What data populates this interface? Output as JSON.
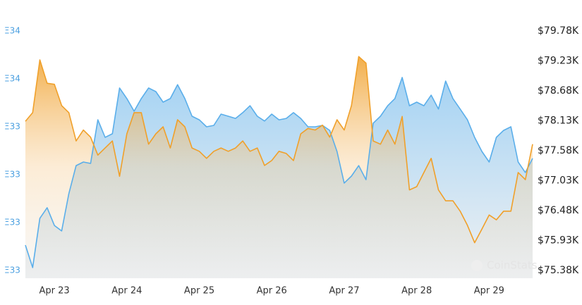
{
  "chart_data": {
    "type": "line",
    "categories": [
      null,
      null,
      null,
      null,
      "Apr 23",
      null,
      null,
      null,
      null,
      null,
      null,
      null,
      null,
      null,
      "Apr 24",
      null,
      null,
      null,
      null,
      null,
      null,
      null,
      null,
      null,
      "Apr 25",
      null,
      null,
      null,
      null,
      null,
      null,
      null,
      null,
      null,
      "Apr 26",
      null,
      null,
      null,
      null,
      null,
      null,
      null,
      null,
      null,
      "Apr 27",
      null,
      null,
      null,
      null,
      null,
      null,
      null,
      null,
      null,
      "Apr 28",
      null,
      null,
      null,
      null,
      null,
      null,
      null,
      null,
      null,
      "Apr 29",
      null,
      null,
      null,
      null,
      null,
      null
    ],
    "series": [
      {
        "color": "#5aaeea",
        "axis": "y",
        "values": [
          32.906,
          32.812,
          33.018,
          33.062,
          32.988,
          32.965,
          33.121,
          33.238,
          33.253,
          33.247,
          33.429,
          33.356,
          33.371,
          33.562,
          33.518,
          33.465,
          33.518,
          33.562,
          33.547,
          33.503,
          33.518,
          33.576,
          33.518,
          33.444,
          33.429,
          33.4,
          33.406,
          33.453,
          33.444,
          33.435,
          33.459,
          33.488,
          33.444,
          33.424,
          33.453,
          33.429,
          33.435,
          33.459,
          33.435,
          33.4,
          33.4,
          33.406,
          33.385,
          33.297,
          33.165,
          33.194,
          33.238,
          33.179,
          33.415,
          33.444,
          33.488,
          33.518,
          33.606,
          33.488,
          33.503,
          33.488,
          33.532,
          33.474,
          33.591,
          33.518,
          33.474,
          33.429,
          33.356,
          33.297,
          33.253,
          33.356,
          33.385,
          33.4,
          33.253,
          33.209,
          33.268
        ]
      },
      {
        "color": "#f0a02a",
        "axis": "y2",
        "values": [
          78120,
          78280,
          79250,
          78820,
          78800,
          78410,
          78280,
          77760,
          77960,
          77830,
          77500,
          77630,
          77760,
          77110,
          77890,
          78280,
          78280,
          77700,
          77890,
          78020,
          77630,
          78150,
          78020,
          77630,
          77570,
          77440,
          77570,
          77630,
          77570,
          77630,
          77760,
          77570,
          77630,
          77310,
          77400,
          77570,
          77530,
          77400,
          77890,
          77990,
          77960,
          78050,
          77830,
          78150,
          77960,
          78410,
          79310,
          79190,
          77760,
          77700,
          77960,
          77700,
          78210,
          76860,
          76920,
          77180,
          77440,
          76860,
          76660,
          76660,
          76470,
          76210,
          75890,
          76140,
          76400,
          76310,
          76470,
          76470,
          77180,
          77050,
          77700
        ]
      }
    ],
    "ylim": [
      32.8,
      33.8
    ],
    "yticks": [
      {
        "value": 33.8,
        "label": "Ξ34"
      },
      {
        "value": 33.6,
        "label": "Ξ34"
      },
      {
        "value": 33.4,
        "label": "Ξ33"
      },
      {
        "value": 33.2,
        "label": "Ξ33"
      },
      {
        "value": 33.0,
        "label": "Ξ33"
      },
      {
        "value": 32.8,
        "label": "Ξ33"
      }
    ],
    "y2lim": [
      75380,
      79780
    ],
    "y2ticks": [
      {
        "value": 79780,
        "label": "$79.78K"
      },
      {
        "value": 79230,
        "label": "$79.23K"
      },
      {
        "value": 78680,
        "label": "$78.68K"
      },
      {
        "value": 78130,
        "label": "$78.13K"
      },
      {
        "value": 77580,
        "label": "$77.58K"
      },
      {
        "value": 77030,
        "label": "$77.03K"
      },
      {
        "value": 76480,
        "label": "$76.48K"
      },
      {
        "value": 75930,
        "label": "$75.93K"
      },
      {
        "value": 75380,
        "label": "$75.38K"
      }
    ],
    "watermark": "CoinStats"
  }
}
